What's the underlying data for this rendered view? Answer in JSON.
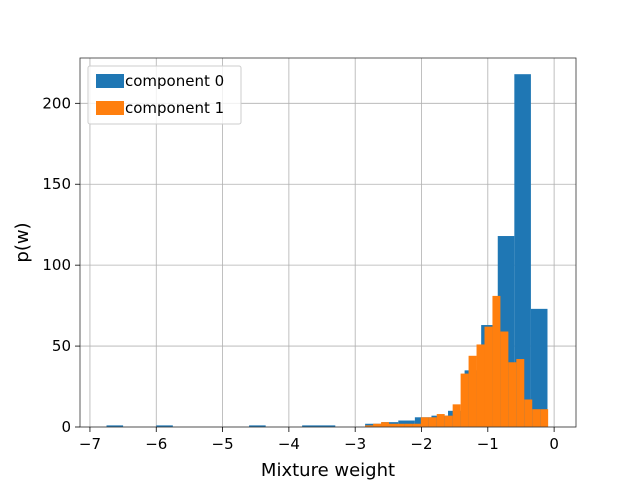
{
  "chart_data": {
    "type": "bar",
    "title": "",
    "xlabel": "Mixture weight",
    "ylabel": "p(w)",
    "xlim": [
      -7.15,
      0.33
    ],
    "ylim": [
      0,
      228
    ],
    "xticks": [
      -7,
      -6,
      -5,
      -4,
      -3,
      -2,
      -1,
      0
    ],
    "xtick_labels": [
      "−7",
      "−6",
      "−5",
      "−4",
      "−3",
      "−2",
      "−1",
      "0"
    ],
    "yticks": [
      0,
      50,
      100,
      150,
      200
    ],
    "ytick_labels": [
      "0",
      "50",
      "100",
      "150",
      "200"
    ],
    "grid": true,
    "legend_position": "top-left",
    "series": [
      {
        "name": "component 0",
        "color": "#1f77b4",
        "bins": [
          {
            "x0": -6.75,
            "x1": -6.5,
            "y": 1
          },
          {
            "x0": -6.0,
            "x1": -5.75,
            "y": 1
          },
          {
            "x0": -4.6,
            "x1": -4.35,
            "y": 1
          },
          {
            "x0": -3.8,
            "x1": -3.3,
            "y": 1
          },
          {
            "x0": -2.85,
            "x1": -2.6,
            "y": 2
          },
          {
            "x0": -2.6,
            "x1": -2.35,
            "y": 3
          },
          {
            "x0": -2.35,
            "x1": -2.1,
            "y": 4
          },
          {
            "x0": -2.1,
            "x1": -1.85,
            "y": 6
          },
          {
            "x0": -1.85,
            "x1": -1.6,
            "y": 7
          },
          {
            "x0": -1.6,
            "x1": -1.35,
            "y": 10
          },
          {
            "x0": -1.35,
            "x1": -1.1,
            "y": 35
          },
          {
            "x0": -1.1,
            "x1": -0.85,
            "y": 63
          },
          {
            "x0": -0.85,
            "x1": -0.6,
            "y": 118
          },
          {
            "x0": -0.6,
            "x1": -0.35,
            "y": 218
          },
          {
            "x0": -0.35,
            "x1": -0.1,
            "y": 73
          }
        ]
      },
      {
        "name": "component 1",
        "color": "#ff7f0e",
        "bins": [
          {
            "x0": -2.85,
            "x1": -2.73,
            "y": 1
          },
          {
            "x0": -2.73,
            "x1": -2.61,
            "y": 2
          },
          {
            "x0": -2.61,
            "x1": -2.49,
            "y": 3
          },
          {
            "x0": -2.49,
            "x1": -2.37,
            "y": 2
          },
          {
            "x0": -2.37,
            "x1": -2.25,
            "y": 2
          },
          {
            "x0": -2.25,
            "x1": -2.13,
            "y": 2
          },
          {
            "x0": -2.13,
            "x1": -2.01,
            "y": 2
          },
          {
            "x0": -2.01,
            "x1": -1.89,
            "y": 6
          },
          {
            "x0": -1.89,
            "x1": -1.77,
            "y": 6
          },
          {
            "x0": -1.77,
            "x1": -1.65,
            "y": 8
          },
          {
            "x0": -1.65,
            "x1": -1.53,
            "y": 7
          },
          {
            "x0": -1.53,
            "x1": -1.41,
            "y": 14
          },
          {
            "x0": -1.41,
            "x1": -1.29,
            "y": 33
          },
          {
            "x0": -1.29,
            "x1": -1.17,
            "y": 44
          },
          {
            "x0": -1.17,
            "x1": -1.05,
            "y": 51
          },
          {
            "x0": -1.05,
            "x1": -0.93,
            "y": 62
          },
          {
            "x0": -0.93,
            "x1": -0.81,
            "y": 81
          },
          {
            "x0": -0.81,
            "x1": -0.69,
            "y": 59
          },
          {
            "x0": -0.69,
            "x1": -0.57,
            "y": 40
          },
          {
            "x0": -0.57,
            "x1": -0.45,
            "y": 42
          },
          {
            "x0": -0.45,
            "x1": -0.33,
            "y": 17
          },
          {
            "x0": -0.33,
            "x1": -0.21,
            "y": 11
          },
          {
            "x0": -0.21,
            "x1": -0.09,
            "y": 11
          }
        ]
      }
    ]
  }
}
